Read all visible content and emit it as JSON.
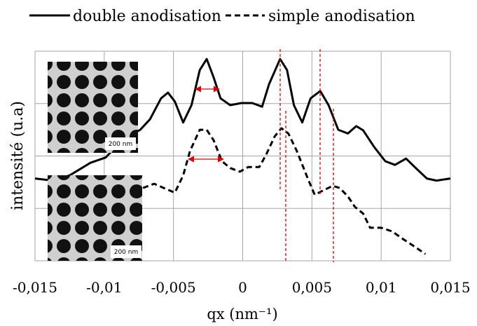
{
  "chart_data": {
    "type": "line",
    "ylabel": "intensité (u.a)",
    "xlabel": "qx (nm⁻¹)",
    "xlim": [
      -0.015,
      0.015
    ],
    "xticks": [
      {
        "value": -0.015,
        "label": "-0,015"
      },
      {
        "value": -0.01,
        "label": "-0,01"
      },
      {
        "value": -0.005,
        "label": "-0,005"
      },
      0,
      {
        "value": 0.005,
        "label": "0,005"
      },
      {
        "value": 0.01,
        "label": "0,01"
      },
      {
        "value": 0.015,
        "label": "0,015"
      }
    ],
    "ylim": [
      0,
      4
    ],
    "yticks": [
      0,
      1,
      2,
      3,
      4
    ],
    "grid": true,
    "legend": "top",
    "insets": [
      {
        "label": "200 nm"
      },
      {
        "label": "200 nm"
      }
    ],
    "series": [
      {
        "name": "double anodisation",
        "color": "#000000",
        "dash": "solid",
        "x": [
          -0.015,
          -0.0137,
          -0.0125,
          -0.011,
          -0.0099,
          -0.0087,
          -0.0074,
          -0.0067,
          -0.0059,
          -0.0054,
          -0.0049,
          -0.0043,
          -0.0037,
          -0.0031,
          -0.0026,
          -0.0021,
          -0.0016,
          -0.0009,
          -0.0001,
          0.0007,
          0.0014,
          0.0019,
          0.0027,
          0.0032,
          0.0037,
          0.0043,
          0.0049,
          0.0056,
          0.0062,
          0.0069,
          0.0076,
          0.0082,
          0.0087,
          0.0095,
          0.0103,
          0.011,
          0.0118,
          0.0125,
          0.0133,
          0.014,
          0.015
        ],
        "values": [
          1.57,
          1.53,
          1.63,
          1.87,
          1.97,
          2.3,
          2.5,
          2.7,
          3.1,
          3.21,
          3.04,
          2.64,
          2.97,
          3.64,
          3.85,
          3.5,
          3.1,
          2.97,
          3.01,
          3.01,
          2.94,
          3.37,
          3.85,
          3.64,
          2.97,
          2.64,
          3.1,
          3.24,
          2.97,
          2.5,
          2.43,
          2.57,
          2.49,
          2.17,
          1.9,
          1.83,
          1.95,
          1.77,
          1.57,
          1.53,
          1.57
        ]
      },
      {
        "name": "simple anodisation",
        "color": "#000000",
        "dash": "dashed",
        "x": [
          -0.0072,
          -0.0064,
          -0.0057,
          -0.0049,
          -0.0043,
          -0.0038,
          -0.0031,
          -0.0026,
          -0.0021,
          -0.0015,
          -0.0009,
          -0.0002,
          0.0004,
          0.0012,
          0.0017,
          0.0023,
          0.0028,
          0.0033,
          0.0039,
          0.0047,
          0.0052,
          0.0058,
          0.0065,
          0.007,
          0.0076,
          0.0081,
          0.0087,
          0.0092,
          0.01,
          0.0108,
          0.0115,
          0.0123,
          0.0132
        ],
        "values": [
          1.39,
          1.47,
          1.39,
          1.3,
          1.63,
          2.1,
          2.5,
          2.5,
          2.3,
          1.9,
          1.77,
          1.7,
          1.79,
          1.79,
          2.03,
          2.37,
          2.53,
          2.43,
          2.1,
          1.57,
          1.26,
          1.34,
          1.43,
          1.39,
          1.23,
          1.03,
          0.9,
          0.63,
          0.63,
          0.56,
          0.43,
          0.29,
          0.13
        ]
      }
    ]
  }
}
